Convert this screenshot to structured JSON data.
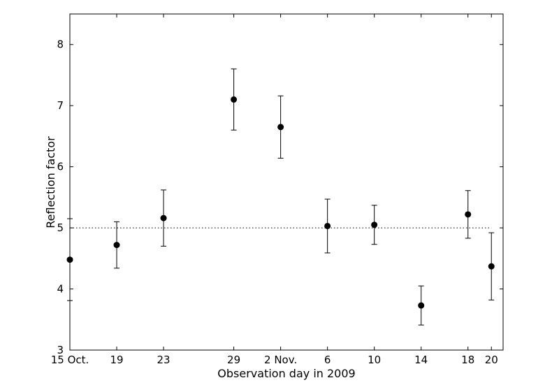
{
  "chart_data": {
    "type": "scatter",
    "title": "",
    "xlabel": "Observation day in 2009",
    "ylabel": "Reflection factor",
    "xlim": [
      "2009-10-15",
      "2009-11-21"
    ],
    "ylim": [
      3,
      8.5
    ],
    "x_ticks": [
      {
        "date": "2009-10-15",
        "label": "15 Oct."
      },
      {
        "date": "2009-10-19",
        "label": "19"
      },
      {
        "date": "2009-10-23",
        "label": "23"
      },
      {
        "date": "2009-10-29",
        "label": "29"
      },
      {
        "date": "2009-11-02",
        "label": "2 Nov."
      },
      {
        "date": "2009-11-06",
        "label": "6"
      },
      {
        "date": "2009-11-10",
        "label": "10"
      },
      {
        "date": "2009-11-14",
        "label": "14"
      },
      {
        "date": "2009-11-18",
        "label": "18"
      },
      {
        "date": "2009-11-20",
        "label": "20"
      }
    ],
    "y_ticks": [
      3,
      4,
      5,
      6,
      7,
      8
    ],
    "grid": false,
    "legend": "none",
    "reference_line": {
      "y": 5.0,
      "style": "dotted",
      "x_range": [
        "2009-10-15",
        "2009-11-20"
      ]
    },
    "series": [
      {
        "marker": "filled circle",
        "color": "#000000",
        "points": [
          {
            "x": "2009-10-15",
            "y": 4.48,
            "err": 0.67
          },
          {
            "x": "2009-10-19",
            "y": 4.72,
            "err": 0.38
          },
          {
            "x": "2009-10-23",
            "y": 5.16,
            "err": 0.46
          },
          {
            "x": "2009-10-29",
            "y": 7.1,
            "err": 0.5
          },
          {
            "x": "2009-11-02",
            "y": 6.65,
            "err": 0.51
          },
          {
            "x": "2009-11-06",
            "y": 5.03,
            "err": 0.44
          },
          {
            "x": "2009-11-10",
            "y": 5.05,
            "err": 0.32
          },
          {
            "x": "2009-11-14",
            "y": 3.73,
            "err": 0.32
          },
          {
            "x": "2009-11-18",
            "y": 5.22,
            "err": 0.39
          },
          {
            "x": "2009-11-20",
            "y": 4.37,
            "err": 0.55
          }
        ]
      }
    ]
  }
}
